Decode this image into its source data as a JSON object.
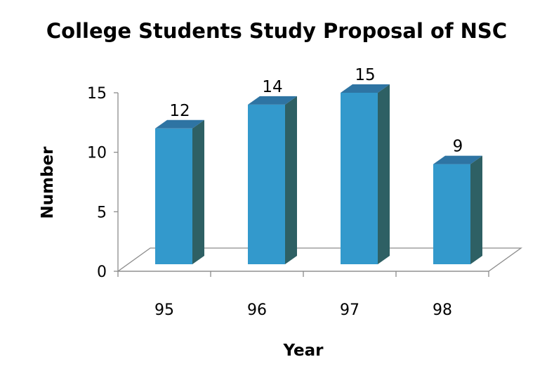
{
  "chart_data": {
    "type": "bar",
    "title": "College Students Study Proposal of NSC",
    "xlabel": "Year",
    "ylabel": "Number",
    "categories": [
      "95",
      "96",
      "97",
      "98"
    ],
    "values": [
      12,
      14,
      15,
      9
    ],
    "data_labels": [
      "12",
      "14",
      "15",
      "9"
    ],
    "yticks": [
      "0",
      "5",
      "10",
      "15"
    ],
    "ylim": [
      0,
      15
    ],
    "grid": false,
    "legend": "none",
    "bar_3d": true,
    "colors": {
      "bar_front": "#3399cc",
      "bar_side": "#2e6064",
      "bar_top": "#2e74a3",
      "axis": "#8c8c8c"
    }
  }
}
